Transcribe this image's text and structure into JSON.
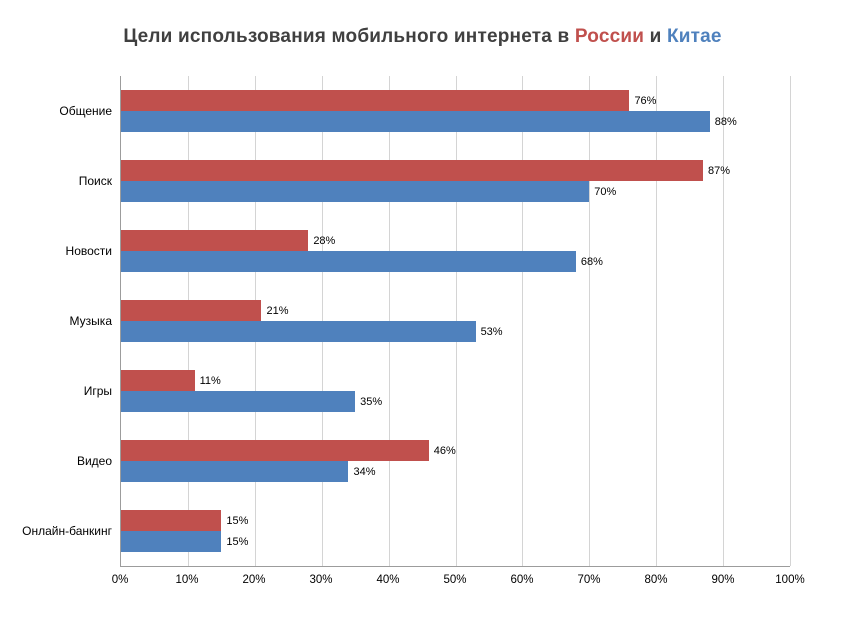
{
  "title": {
    "prefix": "Цели использования мобильного интернета в ",
    "russia": "России",
    "conjunction": " и ",
    "china": "Китае"
  },
  "colors": {
    "russia_bar": "#C0504D",
    "china_bar": "#4F81BD",
    "gridline": "#D4D4D4",
    "axis": "#9C9C9C",
    "title_text": "#404040"
  },
  "chart_data": {
    "type": "bar",
    "orientation": "horizontal",
    "title": "Цели использования мобильного интернета в России и Китае",
    "categories": [
      "Общение",
      "Поиск",
      "Новости",
      "Музыка",
      "Игры",
      "Видео",
      "Онлайн-банкинг"
    ],
    "series": [
      {
        "name": "Россия",
        "color": "#C0504D",
        "values": [
          76,
          87,
          28,
          21,
          11,
          46,
          15
        ]
      },
      {
        "name": "Китай",
        "color": "#4F81BD",
        "values": [
          88,
          70,
          68,
          53,
          35,
          34,
          15
        ]
      }
    ],
    "xlim": [
      0,
      100
    ],
    "x_ticks": [
      "0%",
      "10%",
      "20%",
      "30%",
      "40%",
      "50%",
      "60%",
      "70%",
      "80%",
      "90%",
      "100%"
    ],
    "grid": true,
    "value_label_suffix": "%",
    "legend_position": "none"
  }
}
